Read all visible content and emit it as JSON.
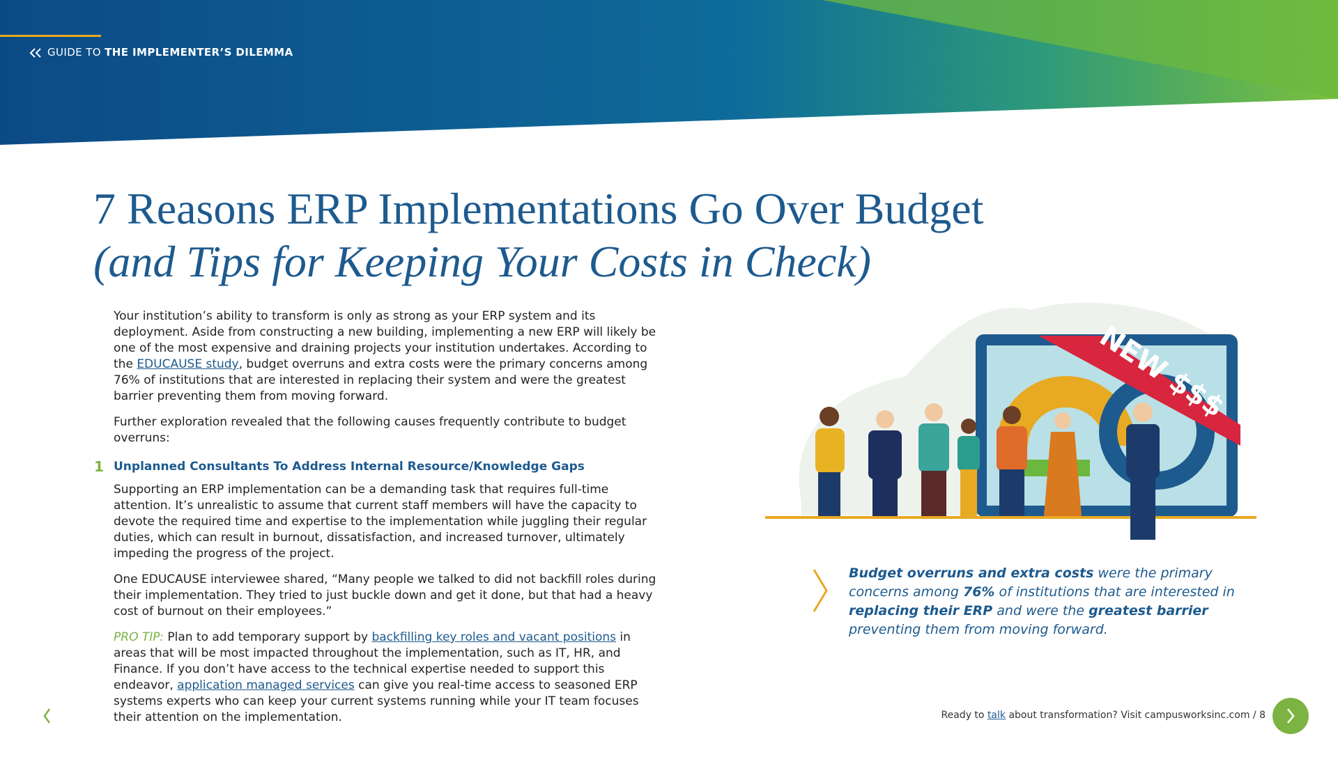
{
  "header": {
    "prefix": "GUIDE TO",
    "title": "THE IMPLEMENTER’S DILEMMA"
  },
  "title": {
    "line1": "7 Reasons ERP Implementations Go Over Budget",
    "line2": "(and Tips for Keeping Your Costs in Check)"
  },
  "intro": [
    "Your institution’s ability to transform is only as strong as your ERP system and its deployment. Aside from constructing a new building, implementing a new ERP will likely be one of the most expensive and draining projects your institution undertakes. According to the ",
    "EDUCAUSE study",
    ", budget overruns and extra costs were the primary concerns among 76% of institutions that are interested in replacing their system and were the greatest barrier preventing them from moving forward."
  ],
  "lead": "Further exploration revealed that the following causes frequently contribute to budget overruns:",
  "reason": {
    "number": "1",
    "heading": "Unplanned Consultants To Address Internal Resource/Knowledge Gaps",
    "paragraphs": [
      "Supporting an ERP implementation can be a demanding task that requires full-time attention. It’s unrealistic to assume that current staff members will have the capacity to devote the required time and expertise to the implementation while juggling their regular duties, which can result in burnout, dissatisfaction, and increased turnover, ultimately impeding the progress of the project.",
      "One EDUCAUSE interviewee shared, “Many people we talked to did not backfill roles during their implementation. They tried to just buckle down and get it done, but that had a heavy cost of burnout on their employees.”"
    ]
  },
  "pro_tip": {
    "label": "PRO TIP:",
    "segments": [
      " Plan to add temporary support by ",
      "backfilling key roles and vacant positions",
      " in areas that will be most impacted throughout the implementation, such as IT, HR, and Finance. If you don’t have access to the technical expertise needed to support this endeavor, ",
      "application managed services",
      " can give you real-time access to seasoned ERP systems experts who can keep your current systems running while your IT team focuses their attention on the implementation."
    ]
  },
  "illustration": {
    "banner": "NEW $$$"
  },
  "callout": [
    "Budget overruns and extra costs",
    " were the primary concerns among ",
    "76%",
    " of institutions that are interested in ",
    "replacing their ERP",
    " and were the ",
    "greatest barrier",
    " preventing them from moving forward."
  ],
  "footer": {
    "segments": [
      "Ready to ",
      "talk",
      " about transformation? Visit campusworksinc.com / ",
      "8"
    ]
  }
}
